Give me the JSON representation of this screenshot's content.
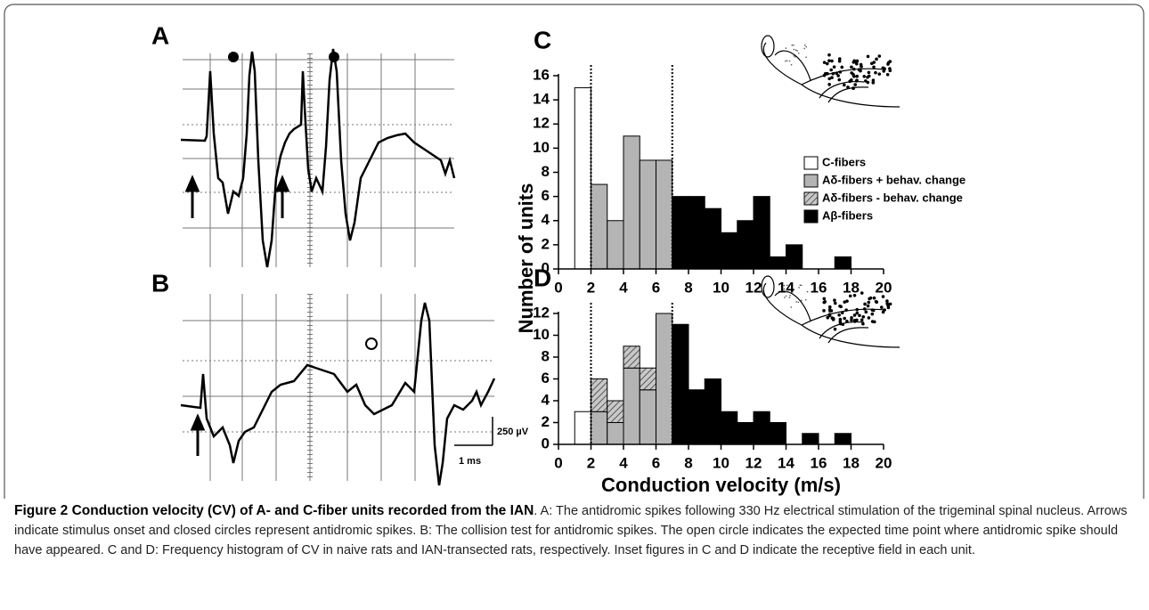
{
  "traces": [
    {
      "label": "A"
    },
    {
      "label": "B",
      "scale_y": "250 µV",
      "scale_x": "1 ms"
    }
  ],
  "chart_data": [
    {
      "type": "histogram",
      "title": "C",
      "ylabel": "Number of units",
      "bins": [
        1,
        2,
        3,
        4,
        5,
        6,
        7,
        8,
        9,
        10,
        11,
        12,
        13,
        14,
        15,
        16,
        17,
        18
      ],
      "xlim": [
        0,
        20
      ],
      "xticks": [
        0,
        2,
        4,
        6,
        8,
        10,
        12,
        14,
        16,
        18,
        20
      ],
      "ylim": [
        0,
        16
      ],
      "yticks": [
        0,
        2,
        4,
        6,
        8,
        10,
        12,
        14,
        16
      ],
      "vlines": [
        2,
        7
      ],
      "legend": true,
      "series": [
        {
          "name": "C-fibers",
          "color": "#ffffff",
          "values": [
            15,
            0,
            0,
            0,
            0,
            0,
            0,
            0,
            0,
            0,
            0,
            0,
            0,
            0,
            0,
            0,
            0
          ]
        },
        {
          "name": "Aδ-fibers + behav. change",
          "color": "#b4b4b4",
          "values": [
            0,
            7,
            4,
            11,
            9,
            9,
            0,
            0,
            0,
            0,
            0,
            0,
            0,
            0,
            0,
            0,
            0
          ]
        },
        {
          "name": "Aδ-fibers  - behav. change",
          "color": "#b4b4b4",
          "hatch": true,
          "values": [
            0,
            0,
            0,
            0,
            0,
            0,
            0,
            0,
            0,
            0,
            0,
            0,
            0,
            0,
            0,
            0,
            0
          ]
        },
        {
          "name": "Aβ-fibers",
          "color": "#000000",
          "values": [
            0,
            0,
            0,
            0,
            0,
            0,
            6,
            6,
            5,
            3,
            4,
            6,
            1,
            2,
            0,
            0,
            1
          ]
        }
      ]
    },
    {
      "type": "histogram",
      "title": "D",
      "xlabel": "Conduction velocity (m/s)",
      "bins": [
        1,
        2,
        3,
        4,
        5,
        6,
        7,
        8,
        9,
        10,
        11,
        12,
        13,
        14,
        15,
        16,
        17,
        18
      ],
      "xlim": [
        0,
        20
      ],
      "xticks": [
        0,
        2,
        4,
        6,
        8,
        10,
        12,
        14,
        16,
        18,
        20
      ],
      "ylim": [
        0,
        12
      ],
      "yticks": [
        0,
        2,
        4,
        6,
        8,
        10,
        12
      ],
      "vlines": [
        2,
        7
      ],
      "legend": false,
      "series": [
        {
          "color": "#ffffff",
          "values": [
            3,
            0,
            0,
            0,
            0,
            0,
            0,
            0,
            0,
            0,
            0,
            0,
            0,
            0,
            0,
            0,
            0
          ]
        },
        {
          "color": "#b4b4b4",
          "values": [
            0,
            3,
            2,
            7,
            5,
            12,
            0,
            0,
            0,
            0,
            0,
            0,
            0,
            0,
            0,
            0,
            0
          ]
        },
        {
          "color": "#b4b4b4",
          "hatch": true,
          "values": [
            0,
            3,
            2,
            2,
            2,
            0,
            0,
            0,
            0,
            0,
            0,
            0,
            0,
            0,
            0,
            0,
            0
          ]
        },
        {
          "color": "#000000",
          "values": [
            0,
            0,
            0,
            0,
            0,
            0,
            11,
            5,
            6,
            3,
            2,
            3,
            2,
            0,
            1,
            0,
            1
          ]
        }
      ]
    }
  ],
  "caption": {
    "title": "Figure 2 Conduction velocity (CV) of A- and C-fiber units recorded from the IAN",
    "text": ". A: The antidromic spikes following 330 Hz electrical stimulation of the trigeminal spinal nucleus. Arrows indicate stimulus onset and closed circles represent antidromic spikes. B: The collision test for antidromic spikes. The open circle indicates the expected time point where antidromic spike should have appeared. C and D: Frequency histogram of CV in naive rats and IAN-transected rats, respectively. Inset figures in C and D indicate the receptive field in each unit."
  }
}
